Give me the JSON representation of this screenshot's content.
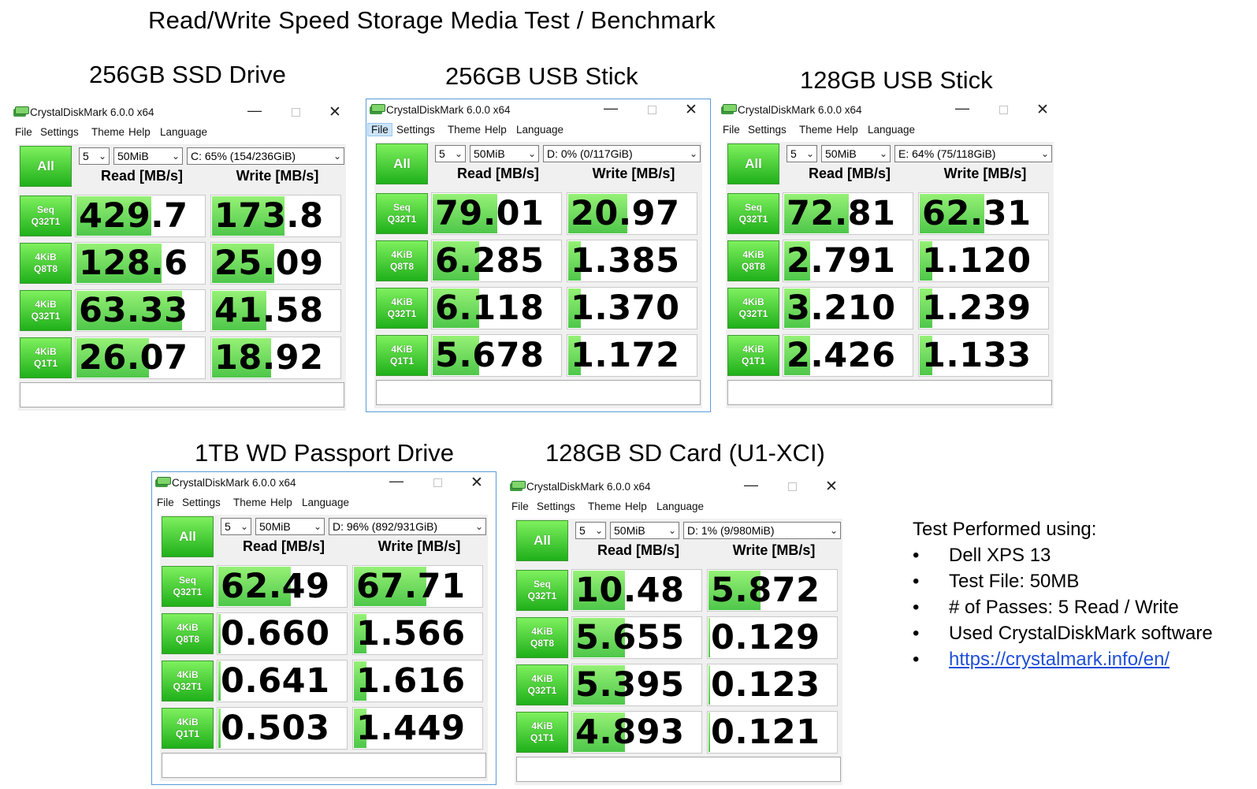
{
  "title": "Read/Write Speed Storage Media Test / Benchmark",
  "app": {
    "window_title": "CrystalDiskMark 6.0.0 x64",
    "menu": [
      "File",
      "Settings",
      "Theme",
      "Help",
      "Language"
    ],
    "all_label": "All",
    "read_header": "Read [MB/s]",
    "write_header": "Write [MB/s]",
    "row_labels": [
      [
        "Seq",
        "Q32T1"
      ],
      [
        "4KiB",
        "Q8T8"
      ],
      [
        "4KiB",
        "Q32T1"
      ],
      [
        "4KiB",
        "Q1T1"
      ]
    ]
  },
  "colors": {
    "bar_green": "#3fc23a",
    "button_green": "#1fb01a",
    "link": "#1f4fd8"
  },
  "benchmarks": [
    {
      "heading": "256GB SSD Drive",
      "count": "5",
      "size": "50MiB",
      "drive": "C: 65% (154/236GiB)",
      "read": [
        "429.7",
        "128.6",
        "63.33",
        "26.07"
      ],
      "write": [
        "173.8",
        "25.09",
        "41.58",
        "18.92"
      ],
      "read_fill": [
        0.58,
        0.66,
        0.82,
        0.56
      ],
      "write_fill": [
        0.56,
        0.48,
        0.42,
        0.46
      ]
    },
    {
      "heading": "256GB USB Stick",
      "count": "5",
      "size": "50MiB",
      "drive": "D: 0% (0/117GiB)",
      "read": [
        "79.01",
        "6.285",
        "6.118",
        "5.678"
      ],
      "write": [
        "20.97",
        "1.385",
        "1.370",
        "1.172"
      ],
      "read_fill": [
        0.5,
        0.36,
        0.36,
        0.36
      ],
      "write_fill": [
        0.46,
        0.1,
        0.1,
        0.1
      ]
    },
    {
      "heading": "128GB USB Stick",
      "count": "5",
      "size": "50MiB",
      "drive": "E: 64% (75/118GiB)",
      "read": [
        "72.81",
        "2.791",
        "3.210",
        "2.426"
      ],
      "write": [
        "62.31",
        "1.120",
        "1.239",
        "1.133"
      ],
      "read_fill": [
        0.5,
        0.2,
        0.2,
        0.2
      ],
      "write_fill": [
        0.5,
        0.1,
        0.1,
        0.1
      ]
    },
    {
      "heading": "1TB WD Passport Drive",
      "count": "5",
      "size": "50MiB",
      "drive": "D: 96% (892/931GiB)",
      "read": [
        "62.49",
        "0.660",
        "0.641",
        "0.503"
      ],
      "write": [
        "67.71",
        "1.566",
        "1.616",
        "1.449"
      ],
      "read_fill": [
        0.56,
        0.02,
        0.02,
        0.02
      ],
      "write_fill": [
        0.56,
        0.1,
        0.1,
        0.1
      ]
    },
    {
      "heading": "128GB SD Card (U1-XCI)",
      "count": "5",
      "size": "50MiB",
      "drive": "D: 1% (9/980MiB)",
      "read": [
        "10.48",
        "5.655",
        "5.395",
        "4.893"
      ],
      "write": [
        "5.872",
        "0.129",
        "0.123",
        "0.121"
      ],
      "read_fill": [
        0.4,
        0.4,
        0.4,
        0.4
      ],
      "write_fill": [
        0.4,
        0.01,
        0.01,
        0.01
      ]
    }
  ],
  "notes": {
    "title": "Test Performed using:",
    "bullet": "•",
    "items": [
      "Dell XPS 13",
      "Test File:   50MB",
      "# of Passes: 5   Read / Write",
      "Used CrystalDiskMark software"
    ],
    "link": "https://crystalmark.info/en/"
  }
}
